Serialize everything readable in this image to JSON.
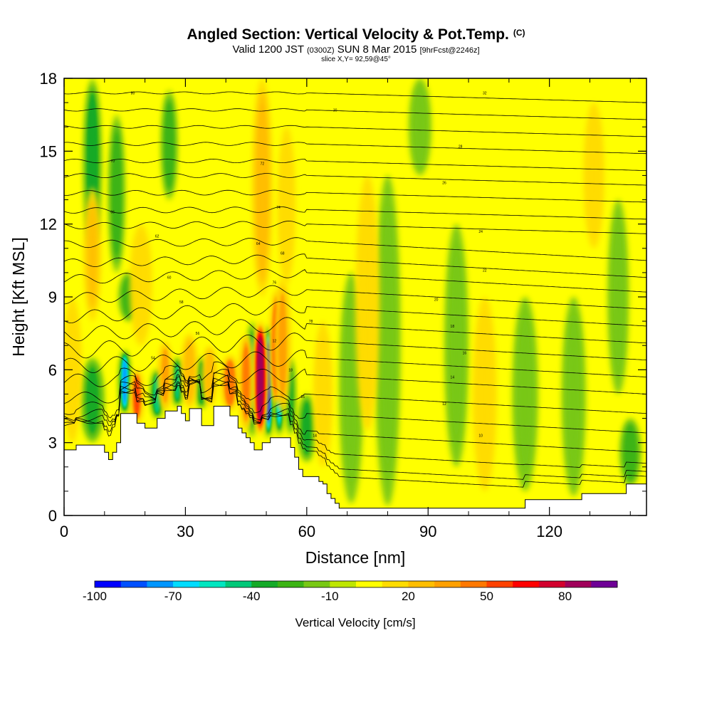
{
  "header": {
    "title": "Angled Section: Vertical Velocity & Pot.Temp.",
    "title_unit": "(C)",
    "valid_prefix": "Valid 1200 JST",
    "valid_utc": "(0300Z)",
    "valid_date": "SUN 8 Mar 2015",
    "forecast": "[9hrFcst@2246z]",
    "slice": "slice X,Y= 92,59@45°"
  },
  "chart_data": {
    "type": "heatmap",
    "xlabel": "Distance [nm]",
    "ylabel": "Height [Kft MSL]",
    "xlim": [
      0,
      144
    ],
    "ylim": [
      0,
      18
    ],
    "x_ticks": [
      "0",
      "30",
      "60",
      "90",
      "120"
    ],
    "x_tick_values": [
      0,
      30,
      60,
      90,
      120
    ],
    "y_ticks": [
      "0",
      "3",
      "6",
      "9",
      "12",
      "15",
      "18"
    ],
    "y_tick_values": [
      0,
      3,
      6,
      9,
      12,
      15,
      18
    ],
    "colorbar": {
      "title": "Vertical Velocity [cm/s]",
      "labels": [
        "-100",
        "-70",
        "-40",
        "-10",
        "20",
        "50",
        "80"
      ],
      "label_values": [
        -100,
        -70,
        -40,
        -10,
        20,
        50,
        80
      ],
      "min": -100,
      "max": 100,
      "colors": [
        "#0000ff",
        "#0050ff",
        "#0096ff",
        "#00dcff",
        "#00e6c0",
        "#00c878",
        "#14aa28",
        "#3cb414",
        "#78c814",
        "#bee600",
        "#ffff00",
        "#ffdc00",
        "#ffbe00",
        "#ffa000",
        "#ff7800",
        "#ff4100",
        "#ff0000",
        "#d2002d",
        "#a0005a",
        "#6e0096"
      ]
    },
    "background_color": "#ffff00",
    "terrain": [
      [
        0,
        2.7
      ],
      [
        3,
        2.9
      ],
      [
        8,
        2.9
      ],
      [
        10,
        2.6
      ],
      [
        11,
        2.3
      ],
      [
        12,
        2.6
      ],
      [
        13,
        3.0
      ],
      [
        14,
        4.2
      ],
      [
        17,
        4.2
      ],
      [
        18,
        3.8
      ],
      [
        20,
        3.6
      ],
      [
        21,
        3.6
      ],
      [
        23,
        4.0
      ],
      [
        25,
        4.3
      ],
      [
        27,
        4.3
      ],
      [
        28,
        4.5
      ],
      [
        29,
        4.2
      ],
      [
        30,
        3.9
      ],
      [
        31,
        4.4
      ],
      [
        33,
        4.4
      ],
      [
        34,
        3.7
      ],
      [
        35,
        3.7
      ],
      [
        37,
        4.5
      ],
      [
        40,
        4.5
      ],
      [
        41,
        4.1
      ],
      [
        42,
        4.1
      ],
      [
        43,
        3.6
      ],
      [
        44,
        3.4
      ],
      [
        45,
        3.2
      ],
      [
        46,
        3.0
      ],
      [
        47,
        2.7
      ],
      [
        48,
        2.7
      ],
      [
        49,
        3.0
      ],
      [
        50,
        3.0
      ],
      [
        51,
        3.2
      ],
      [
        53,
        3.2
      ],
      [
        55,
        3.2
      ],
      [
        56,
        2.8
      ],
      [
        57,
        2.4
      ],
      [
        58,
        1.9
      ],
      [
        59,
        1.6
      ],
      [
        62,
        1.6
      ],
      [
        63,
        1.4
      ],
      [
        64,
        1.3
      ],
      [
        65,
        0.9
      ],
      [
        66,
        0.7
      ],
      [
        67,
        0.5
      ],
      [
        68,
        0.3
      ],
      [
        113,
        0.3
      ],
      [
        114,
        0.65
      ],
      [
        127,
        0.65
      ],
      [
        128,
        0.9
      ],
      [
        138,
        0.9
      ],
      [
        139,
        1.3
      ],
      [
        144,
        1.3
      ]
    ],
    "updrafts": [
      {
        "x": 48.5,
        "z0": 3.3,
        "z1": 8.0,
        "w": 1.8,
        "v": 85
      },
      {
        "x": 52.5,
        "z0": 4.5,
        "z1": 9.3,
        "w": 1.6,
        "v": 55
      },
      {
        "x": 54,
        "z0": 4.2,
        "z1": 9.8,
        "w": 2.0,
        "v": 30
      },
      {
        "x": 41,
        "z0": 4.3,
        "z1": 6.6,
        "w": 2.2,
        "v": 45
      },
      {
        "x": 45,
        "z0": 3.5,
        "z1": 7.5,
        "w": 1.8,
        "v": 40
      },
      {
        "x": 18,
        "z0": 3.8,
        "z1": 6.0,
        "w": 1.6,
        "v": 50
      },
      {
        "x": 25,
        "z0": 4.3,
        "z1": 7.2,
        "w": 1.8,
        "v": 30
      },
      {
        "x": 31,
        "z0": 4.4,
        "z1": 7.5,
        "w": 2.0,
        "v": 25
      },
      {
        "x": 36,
        "z0": 4.5,
        "z1": 7.0,
        "w": 1.8,
        "v": 25
      },
      {
        "x": 2,
        "z0": 3.0,
        "z1": 9.0,
        "w": 2.4,
        "v": 18
      },
      {
        "x": 7,
        "z0": 8.0,
        "z1": 13.5,
        "w": 2.2,
        "v": 20
      },
      {
        "x": 19,
        "z0": 7.0,
        "z1": 12.0,
        "w": 2.8,
        "v": 18
      },
      {
        "x": 49,
        "z0": 9.0,
        "z1": 18.0,
        "w": 2.5,
        "v": 22
      },
      {
        "x": 55,
        "z0": 9.5,
        "z1": 16.0,
        "w": 2.2,
        "v": 15
      },
      {
        "x": 64,
        "z0": 2.0,
        "z1": 8.0,
        "w": 2.4,
        "v": 16
      },
      {
        "x": 104,
        "z0": 1.0,
        "z1": 9.0,
        "w": 3.0,
        "v": 14
      },
      {
        "x": 131,
        "z0": 11.0,
        "z1": 17.0,
        "w": 2.6,
        "v": 18
      },
      {
        "x": 75,
        "z0": 3.5,
        "z1": 14.0,
        "w": 3.0,
        "v": 15
      }
    ],
    "downdrafts": [
      {
        "x": 15,
        "z0": 4.2,
        "z1": 6.8,
        "w": 1.4,
        "v": -70
      },
      {
        "x": 23,
        "z0": 4.0,
        "z1": 6.0,
        "w": 1.6,
        "v": -45
      },
      {
        "x": 28,
        "z0": 4.5,
        "z1": 6.5,
        "w": 1.6,
        "v": -40
      },
      {
        "x": 34,
        "z0": 4.4,
        "z1": 6.5,
        "w": 1.6,
        "v": -35
      },
      {
        "x": 50.5,
        "z0": 3.2,
        "z1": 7.8,
        "w": 1.3,
        "v": -90
      },
      {
        "x": 53.2,
        "z0": 3.3,
        "z1": 7.0,
        "w": 1.2,
        "v": -60
      },
      {
        "x": 46.5,
        "z0": 3.2,
        "z1": 8.0,
        "w": 1.4,
        "v": -40
      },
      {
        "x": 56,
        "z0": 3.3,
        "z1": 6.5,
        "w": 1.2,
        "v": -30
      },
      {
        "x": 7,
        "z0": 3.0,
        "z1": 6.5,
        "w": 3.0,
        "v": -30
      },
      {
        "x": 7,
        "z0": 11.0,
        "z1": 18.0,
        "w": 2.2,
        "v": -35
      },
      {
        "x": 13,
        "z0": 10.0,
        "z1": 16.5,
        "w": 2.0,
        "v": -28
      },
      {
        "x": 26,
        "z0": 13.0,
        "z1": 17.5,
        "w": 2.0,
        "v": -25
      },
      {
        "x": 16,
        "z0": 8.0,
        "z1": 10.0,
        "w": 2.5,
        "v": -22
      },
      {
        "x": 71,
        "z0": 0.5,
        "z1": 10.0,
        "w": 3.0,
        "v": -14
      },
      {
        "x": 80,
        "z0": 0.4,
        "z1": 14.0,
        "w": 3.2,
        "v": -12
      },
      {
        "x": 88,
        "z0": 14.0,
        "z1": 18.0,
        "w": 2.8,
        "v": -14
      },
      {
        "x": 97,
        "z0": 2.0,
        "z1": 12.0,
        "w": 3.0,
        "v": -12
      },
      {
        "x": 114,
        "z0": 1.0,
        "z1": 9.0,
        "w": 3.2,
        "v": -12
      },
      {
        "x": 126,
        "z0": 0.8,
        "z1": 9.0,
        "w": 3.0,
        "v": -11
      },
      {
        "x": 137,
        "z0": 5.0,
        "z1": 13.0,
        "w": 2.6,
        "v": -12
      },
      {
        "x": 140,
        "z0": 1.2,
        "z1": 4.0,
        "w": 2.6,
        "v": -25
      },
      {
        "x": 60,
        "z0": 2.2,
        "z1": 5.0,
        "w": 2.2,
        "v": -30
      }
    ],
    "isentropes": {
      "levels_kft": [
        0.9,
        1.7,
        2.6,
        3.4,
        4.2,
        5.0,
        5.8,
        6.5,
        7.2,
        7.9,
        8.6,
        9.3,
        10.0,
        10.6,
        11.3,
        12.0,
        12.6,
        13.3,
        14.0,
        14.6,
        15.3,
        16.0,
        16.7,
        17.4
      ],
      "labels": [
        {
          "text": "10",
          "x": 103,
          "z": 3.3
        },
        {
          "text": "12",
          "x": 94,
          "z": 4.6
        },
        {
          "text": "14",
          "x": 96,
          "z": 5.7
        },
        {
          "text": "16",
          "x": 99,
          "z": 6.7
        },
        {
          "text": "18",
          "x": 96,
          "z": 7.8
        },
        {
          "text": "20",
          "x": 92,
          "z": 8.9
        },
        {
          "text": "22",
          "x": 104,
          "z": 10.1
        },
        {
          "text": "24",
          "x": 103,
          "z": 11.7
        },
        {
          "text": "26",
          "x": 94,
          "z": 13.7
        },
        {
          "text": "28",
          "x": 98,
          "z": 15.2
        },
        {
          "text": "30",
          "x": 67,
          "z": 16.7
        },
        {
          "text": "32",
          "x": 104,
          "z": 17.4
        },
        {
          "text": "54",
          "x": 22,
          "z": 6.5
        },
        {
          "text": "56",
          "x": 33,
          "z": 7.5
        },
        {
          "text": "58",
          "x": 29,
          "z": 8.8
        },
        {
          "text": "60",
          "x": 26,
          "z": 9.8
        },
        {
          "text": "62",
          "x": 23,
          "z": 11.5
        },
        {
          "text": "64",
          "x": 48,
          "z": 11.2
        },
        {
          "text": "66",
          "x": 12,
          "z": 12.5
        },
        {
          "text": "68",
          "x": 54,
          "z": 10.8
        },
        {
          "text": "70",
          "x": 12,
          "z": 14.6
        },
        {
          "text": "72",
          "x": 49,
          "z": 14.5
        },
        {
          "text": "74",
          "x": 53,
          "z": 12.7
        },
        {
          "text": "76",
          "x": 52,
          "z": 9.6
        },
        {
          "text": "78",
          "x": 61,
          "z": 8.0
        },
        {
          "text": "80",
          "x": 17,
          "z": 17.4
        },
        {
          "text": "16",
          "x": 59,
          "z": 4.9
        },
        {
          "text": "18",
          "x": 56,
          "z": 6.0
        },
        {
          "text": "14",
          "x": 62,
          "z": 3.3
        },
        {
          "text": "12",
          "x": 52,
          "z": 7.2
        }
      ]
    }
  }
}
